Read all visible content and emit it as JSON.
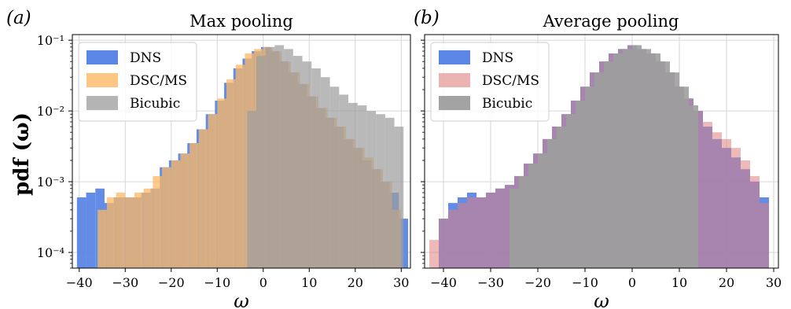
{
  "figure": {
    "ylabel": "pdf (ω)",
    "panels": [
      {
        "letter": "(a)",
        "title": "Max pooling"
      },
      {
        "letter": "(b)",
        "title": "Average pooling"
      }
    ]
  },
  "chart_data": [
    {
      "type": "histogram",
      "title": "Max pooling",
      "panel_label": "(a)",
      "xlabel": "ω",
      "ylabel": "pdf (ω)",
      "yscale": "log",
      "xlim": [
        -41.5,
        32
      ],
      "ylim": [
        6e-05,
        0.12
      ],
      "xticks": [
        -40,
        -30,
        -20,
        -10,
        0,
        10,
        20,
        30
      ],
      "yticks": [
        {
          "value": 0.0001,
          "label": "10⁻⁴"
        },
        {
          "value": 0.001,
          "label": "10⁻³"
        },
        {
          "value": 0.01,
          "label": "10⁻²"
        },
        {
          "value": 0.1,
          "label": "10⁻¹"
        }
      ],
      "grid": true,
      "legend_position": "top-left",
      "series": [
        {
          "name": "DNS",
          "color": "#5b86e5",
          "opacity": 0.95,
          "x": [
            -39.5,
            -37.5,
            -35.5,
            -33.5,
            -31.5,
            -29.5,
            -27.5,
            -25.5,
            -23.5,
            -21.5,
            -19.5,
            -17.5,
            -15.5,
            -13.5,
            -11.5,
            -9.5,
            -7.5,
            -5.5,
            -3.5,
            -1.5,
            0.5,
            2.5,
            4.5,
            6.5,
            8.5,
            10.5,
            12.5,
            14.5,
            16.5,
            18.5,
            20.5,
            22.5,
            24.5,
            26.5,
            28.5,
            30.5
          ],
          "values": [
            0.0006,
            0.0007,
            0.0008,
            0.0005,
            0.0006,
            0.0006,
            0.0006,
            0.0007,
            0.0008,
            0.0016,
            0.002,
            0.0025,
            0.0035,
            0.0055,
            0.009,
            0.014,
            0.025,
            0.04,
            0.055,
            0.07,
            0.08,
            0.07,
            0.05,
            0.035,
            0.024,
            0.016,
            0.011,
            0.008,
            0.006,
            0.004,
            0.003,
            0.002,
            0.0015,
            0.001,
            0.0007,
            0.0003
          ]
        },
        {
          "name": "DSC/MS",
          "color": "#fdb863",
          "opacity": 0.75,
          "x": [
            -35,
            -33,
            -31,
            -29,
            -27,
            -25,
            -23,
            -21,
            -19,
            -17,
            -15,
            -13,
            -11,
            -9,
            -7,
            -5,
            -3,
            -1,
            1,
            3,
            5,
            7,
            9,
            11,
            13,
            15,
            17,
            19,
            21,
            23,
            25,
            27,
            29
          ],
          "values": [
            0.0004,
            0.0006,
            0.0007,
            0.0006,
            0.0007,
            0.0008,
            0.0012,
            0.0016,
            0.002,
            0.0025,
            0.0035,
            0.0055,
            0.009,
            0.015,
            0.028,
            0.045,
            0.065,
            0.075,
            0.08,
            0.07,
            0.05,
            0.035,
            0.024,
            0.016,
            0.011,
            0.008,
            0.006,
            0.004,
            0.003,
            0.0022,
            0.0015,
            0.001,
            0.0004
          ]
        },
        {
          "name": "Bicubic",
          "color": "#9e9e9e",
          "opacity": 0.72,
          "x": [
            -2.5,
            -0.5,
            1.5,
            3.5,
            5.5,
            7.5,
            9.5,
            11.5,
            13.5,
            15.5,
            17.5,
            19.5,
            21.5,
            23.5,
            25.5,
            27.5,
            29.5
          ],
          "values": [
            0.01,
            0.06,
            0.08,
            0.085,
            0.075,
            0.06,
            0.05,
            0.04,
            0.03,
            0.022,
            0.017,
            0.013,
            0.012,
            0.01,
            0.009,
            0.008,
            0.006
          ]
        }
      ]
    },
    {
      "type": "histogram",
      "title": "Average pooling",
      "panel_label": "(b)",
      "xlabel": "ω",
      "ylabel": "",
      "yscale": "log",
      "xlim": [
        -44,
        31
      ],
      "ylim": [
        6e-05,
        0.12
      ],
      "xticks": [
        -40,
        -30,
        -20,
        -10,
        0,
        10,
        20,
        30
      ],
      "grid": true,
      "legend_position": "top-left",
      "series": [
        {
          "name": "DNS",
          "color": "#5b86e5",
          "opacity": 0.95,
          "x": [
            -40,
            -38,
            -36,
            -34,
            -32,
            -30,
            -28,
            -26,
            -24,
            -22,
            -20,
            -18,
            -16,
            -14,
            -12,
            -10,
            -8,
            -6,
            -4,
            -2,
            0,
            2,
            4,
            6,
            8,
            10,
            12,
            14,
            16,
            18,
            20,
            22,
            24,
            26,
            28
          ],
          "values": [
            0.0003,
            0.0005,
            0.0006,
            0.0007,
            0.0006,
            0.0007,
            0.0008,
            0.0009,
            0.0012,
            0.0018,
            0.0025,
            0.004,
            0.006,
            0.009,
            0.014,
            0.022,
            0.035,
            0.05,
            0.065,
            0.075,
            0.085,
            0.075,
            0.065,
            0.05,
            0.035,
            0.022,
            0.015,
            0.01,
            0.006,
            0.004,
            0.003,
            0.0022,
            0.0015,
            0.001,
            0.0006
          ]
        },
        {
          "name": "DSC/MS",
          "color": "#e08080",
          "opacity": 0.55,
          "x": [
            -42,
            -40,
            -38,
            -36,
            -34,
            -32,
            -30,
            -28,
            -26,
            -24,
            -22,
            -20,
            -18,
            -16,
            -14,
            -12,
            -10,
            -8,
            -6,
            -4,
            -2,
            0,
            2,
            4,
            6,
            8,
            10,
            12,
            14,
            16,
            18,
            20,
            22,
            24,
            26,
            28
          ],
          "values": [
            0.00015,
            0.0003,
            0.0004,
            0.0005,
            0.0006,
            0.0006,
            0.0007,
            0.0008,
            0.0009,
            0.0012,
            0.0018,
            0.0025,
            0.004,
            0.006,
            0.009,
            0.014,
            0.022,
            0.035,
            0.05,
            0.065,
            0.075,
            0.085,
            0.075,
            0.065,
            0.05,
            0.035,
            0.022,
            0.015,
            0.01,
            0.007,
            0.005,
            0.004,
            0.003,
            0.002,
            0.0012,
            0.0005
          ]
        },
        {
          "name": "Bicubic",
          "color": "#9e9e9e",
          "opacity": 0.9,
          "x": [
            -25,
            -23,
            -21,
            -19,
            -17,
            -15,
            -13,
            -11,
            -9,
            -7,
            -5,
            -3,
            -1,
            1,
            3,
            5,
            7,
            9,
            11,
            13
          ],
          "values": [
            0.0008,
            0.0012,
            0.0018,
            0.0025,
            0.004,
            0.006,
            0.009,
            0.014,
            0.022,
            0.035,
            0.05,
            0.065,
            0.075,
            0.085,
            0.075,
            0.065,
            0.05,
            0.035,
            0.022,
            0.012
          ]
        }
      ]
    }
  ]
}
